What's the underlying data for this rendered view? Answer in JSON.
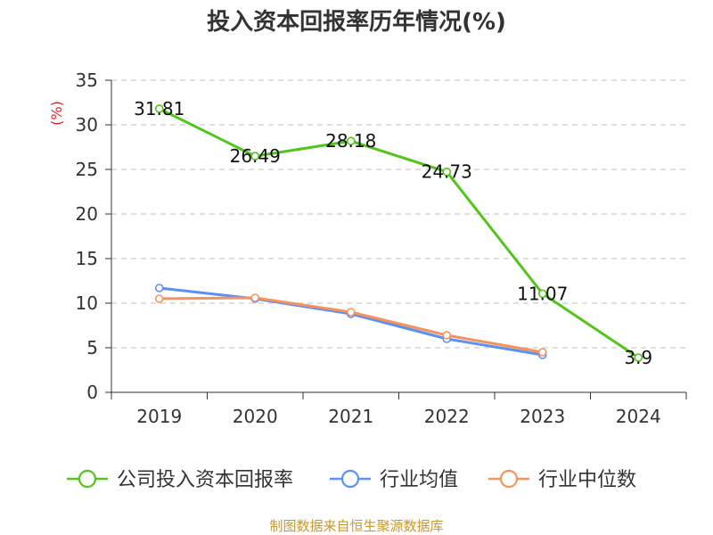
{
  "chart_data": {
    "type": "line",
    "title": "投入资本回报率历年情况(%)",
    "ylabel": "(%)",
    "xlabel": "",
    "categories": [
      "2019",
      "2020",
      "2021",
      "2022",
      "2023",
      "2024"
    ],
    "ylim": [
      0,
      35
    ],
    "yticks": [
      0,
      5,
      10,
      15,
      20,
      25,
      30,
      35
    ],
    "grid": true,
    "legend_position": "bottom",
    "series": [
      {
        "name": "公司投入资本回报率",
        "color": "#52c41a",
        "values": [
          31.81,
          26.49,
          28.18,
          24.73,
          11.07,
          3.9
        ],
        "labels": [
          "31.81",
          "26.49",
          "28.18",
          "24.73",
          "11.07",
          "3.9"
        ]
      },
      {
        "name": "行业均值",
        "color": "#5b8ff9",
        "values": [
          11.7,
          10.5,
          8.8,
          6.0,
          4.2,
          null
        ]
      },
      {
        "name": "行业中位数",
        "color": "#f4935c",
        "values": [
          10.5,
          10.6,
          9.0,
          6.4,
          4.5,
          null
        ]
      }
    ]
  },
  "source": "制图数据来自恒生聚源数据库"
}
